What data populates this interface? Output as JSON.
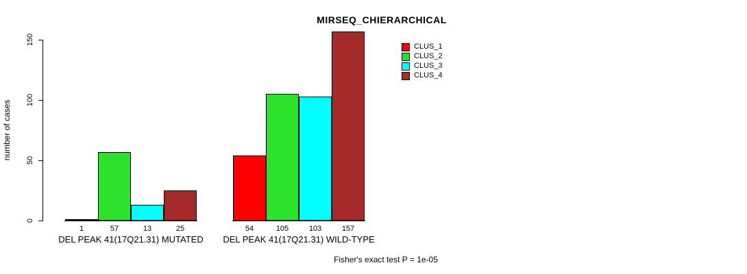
{
  "title": "MIRSEQ_CHIERARCHICAL",
  "y_axis": {
    "label": "number of cases",
    "ticks": [
      0,
      50,
      100,
      150
    ]
  },
  "footer": "Fisher's exact test P = 1e-05",
  "chart_data": {
    "type": "bar",
    "title": "MIRSEQ_CHIERARCHICAL",
    "xlabel": "",
    "ylabel": "number of cases",
    "ylim": [
      0,
      160
    ],
    "yticks": [
      0,
      50,
      100,
      150
    ],
    "grid": false,
    "legend_position": "top-right",
    "bar_value_labels": true,
    "categories": [
      "DEL PEAK 41(17Q21.31) MUTATED",
      "DEL PEAK 41(17Q21.31) WILD-TYPE"
    ],
    "series": [
      {
        "name": "CLUS_1",
        "color": "#ff0000",
        "values": [
          1,
          54
        ]
      },
      {
        "name": "CLUS_2",
        "color": "#2ce22c",
        "values": [
          57,
          105
        ]
      },
      {
        "name": "CLUS_3",
        "color": "#00ffff",
        "values": [
          13,
          103
        ]
      },
      {
        "name": "CLUS_4",
        "color": "#a52a2a",
        "values": [
          25,
          157
        ]
      }
    ],
    "annotation": "Fisher's exact test P = 1e-05"
  }
}
